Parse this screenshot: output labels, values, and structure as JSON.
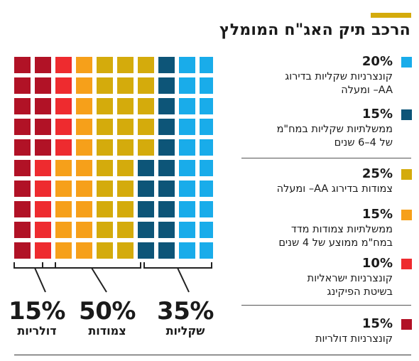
{
  "header": {
    "title": "הרכב תיק האג\"ח המומלץ",
    "accent_color": "#d4ab0c"
  },
  "groups": [
    {
      "pct": "15%",
      "label": "דולריות"
    },
    {
      "pct": "50%",
      "label": "צמודות"
    },
    {
      "pct": "35%",
      "label": "שקליות"
    }
  ],
  "legend": [
    {
      "pct": "20%",
      "desc_lines": [
        "קונצרניות שקליות בדירוג",
        "AA– ומעלה"
      ],
      "color": "#19acea"
    },
    {
      "pct": "15%",
      "desc_lines": [
        "ממשלתיות שקליות במח\"מ",
        "של 4–6 שנים"
      ],
      "color": "#0d5578"
    },
    {
      "pct": "25%",
      "desc_lines": [
        "צמודות בדירוג AA– ומעלה"
      ],
      "color": "#d4ab0c"
    },
    {
      "pct": "15%",
      "desc_lines": [
        "ממשלתיות צמודות מדד",
        "במח\"מ ממוצע של 4 שנים"
      ],
      "color": "#f6a01a"
    },
    {
      "pct": "10%",
      "desc_lines": [
        "קונצרניות ישראליות",
        "בשיטת הפיקינג"
      ],
      "color": "#ee2b2f"
    },
    {
      "pct": "15%",
      "desc_lines": [
        "קונצרניות דולריות"
      ],
      "color": "#b11226"
    }
  ],
  "chart_data": {
    "type": "waffle",
    "title": "הרכב תיק האג\"ח המומלץ",
    "unit": "%",
    "grid": {
      "rows": 10,
      "cols": 10
    },
    "series": [
      {
        "name": "קונצרניות דולריות",
        "value": 15,
        "color": "#b11226"
      },
      {
        "name": "קונצרניות ישראליות בשיטת הפיקינג",
        "value": 10,
        "color": "#ee2b2f"
      },
      {
        "name": "ממשלתיות צמודות מדד במח\"מ ממוצע של 4 שנים",
        "value": 15,
        "color": "#f6a01a"
      },
      {
        "name": "צמודות בדירוג AA– ומעלה",
        "value": 25,
        "color": "#d4ab0c"
      },
      {
        "name": "ממשלתיות שקליות במח\"מ של 4–6 שנים",
        "value": 15,
        "color": "#0d5578"
      },
      {
        "name": "קונצרניות שקליות בדירוג AA– ומעלה",
        "value": 20,
        "color": "#19acea"
      }
    ],
    "groups": [
      {
        "name": "דולריות",
        "value": 15
      },
      {
        "name": "צמודות",
        "value": 50
      },
      {
        "name": "שקליות",
        "value": 35
      }
    ]
  }
}
